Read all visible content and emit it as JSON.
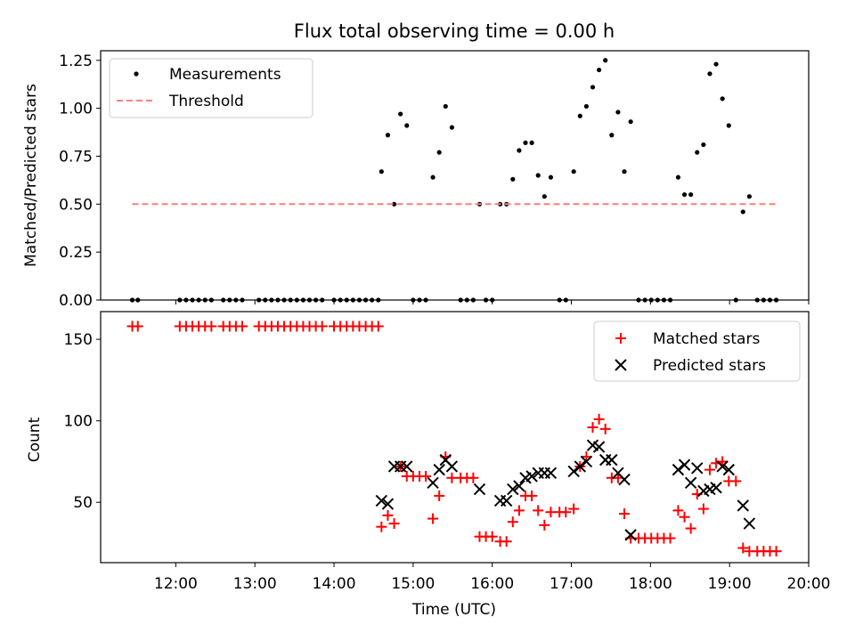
{
  "chart_data": [
    {
      "type": "scatter",
      "title": "Flux total observing time = 0.00 h",
      "xlabel": "",
      "ylabel": "Matched/Predicted stars",
      "xlim": [
        11.05,
        20.0
      ],
      "ylim": [
        0.0,
        1.3
      ],
      "yticks": [
        0.0,
        0.25,
        0.5,
        0.75,
        1.0,
        1.25
      ],
      "ytick_labels": [
        "0.00",
        "0.25",
        "0.50",
        "0.75",
        "1.00",
        "1.25"
      ],
      "xticks": [
        12,
        13,
        14,
        15,
        16,
        17,
        18,
        19,
        20
      ],
      "legend_position": "top-left",
      "series": [
        {
          "name": "Measurements",
          "marker": "dot",
          "color": "#000000",
          "points": [
            [
              11.45,
              0
            ],
            [
              11.52,
              0
            ],
            [
              12.05,
              0
            ],
            [
              12.13,
              0
            ],
            [
              12.21,
              0
            ],
            [
              12.29,
              0
            ],
            [
              12.37,
              0
            ],
            [
              12.45,
              0
            ],
            [
              12.6,
              0
            ],
            [
              12.68,
              0
            ],
            [
              12.76,
              0
            ],
            [
              12.84,
              0
            ],
            [
              13.05,
              0
            ],
            [
              13.13,
              0
            ],
            [
              13.21,
              0
            ],
            [
              13.29,
              0
            ],
            [
              13.37,
              0
            ],
            [
              13.45,
              0
            ],
            [
              13.53,
              0
            ],
            [
              13.61,
              0
            ],
            [
              13.69,
              0
            ],
            [
              13.77,
              0
            ],
            [
              13.85,
              0
            ],
            [
              14.0,
              0
            ],
            [
              14.08,
              0
            ],
            [
              14.16,
              0
            ],
            [
              14.24,
              0
            ],
            [
              14.32,
              0
            ],
            [
              14.4,
              0
            ],
            [
              14.48,
              0
            ],
            [
              14.56,
              0
            ],
            [
              14.6,
              0.67
            ],
            [
              14.68,
              0.86
            ],
            [
              14.76,
              0.5
            ],
            [
              14.84,
              0.97
            ],
            [
              14.92,
              0.91
            ],
            [
              15.0,
              0
            ],
            [
              15.08,
              0
            ],
            [
              15.16,
              0
            ],
            [
              15.25,
              0.64
            ],
            [
              15.33,
              0.77
            ],
            [
              15.41,
              1.01
            ],
            [
              15.49,
              0.9
            ],
            [
              15.6,
              0
            ],
            [
              15.68,
              0
            ],
            [
              15.76,
              0
            ],
            [
              15.84,
              0.5
            ],
            [
              15.92,
              0
            ],
            [
              16.0,
              0
            ],
            [
              16.1,
              0.5
            ],
            [
              16.18,
              0.5
            ],
            [
              16.26,
              0.63
            ],
            [
              16.34,
              0.78
            ],
            [
              16.42,
              0.82
            ],
            [
              16.5,
              0.82
            ],
            [
              16.58,
              0.65
            ],
            [
              16.66,
              0.54
            ],
            [
              16.74,
              0.64
            ],
            [
              16.85,
              0
            ],
            [
              16.93,
              0
            ],
            [
              17.03,
              0.67
            ],
            [
              17.11,
              0.96
            ],
            [
              17.19,
              1.01
            ],
            [
              17.27,
              1.11
            ],
            [
              17.35,
              1.2
            ],
            [
              17.43,
              1.25
            ],
            [
              17.51,
              0.86
            ],
            [
              17.59,
              0.98
            ],
            [
              17.67,
              0.67
            ],
            [
              17.75,
              0.93
            ],
            [
              17.85,
              0
            ],
            [
              17.93,
              0
            ],
            [
              18.01,
              0
            ],
            [
              18.09,
              0
            ],
            [
              18.17,
              0
            ],
            [
              18.25,
              0
            ],
            [
              18.35,
              0.64
            ],
            [
              18.43,
              0.55
            ],
            [
              18.51,
              0.55
            ],
            [
              18.59,
              0.77
            ],
            [
              18.67,
              0.81
            ],
            [
              18.75,
              1.18
            ],
            [
              18.83,
              1.23
            ],
            [
              18.91,
              1.05
            ],
            [
              18.99,
              0.91
            ],
            [
              19.08,
              0
            ],
            [
              19.17,
              0.46
            ],
            [
              19.25,
              0.54
            ],
            [
              19.35,
              0
            ],
            [
              19.43,
              0
            ],
            [
              19.51,
              0
            ],
            [
              19.59,
              0
            ]
          ]
        },
        {
          "name": "Threshold",
          "marker": "dashed-line",
          "color": "#ff7f7f",
          "points": [
            [
              11.45,
              0.5
            ],
            [
              19.6,
              0.5
            ]
          ]
        }
      ]
    },
    {
      "type": "scatter",
      "title": "",
      "xlabel": "Time (UTC)",
      "ylabel": "Count",
      "xlim": [
        11.05,
        20.0
      ],
      "ylim": [
        13,
        167
      ],
      "yticks": [
        50,
        100,
        150
      ],
      "ytick_labels": [
        "50",
        "100",
        "150"
      ],
      "xticks": [
        12,
        13,
        14,
        15,
        16,
        17,
        18,
        19,
        20
      ],
      "xtick_labels": [
        "12:00",
        "13:00",
        "14:00",
        "15:00",
        "16:00",
        "17:00",
        "18:00",
        "19:00",
        "20:00"
      ],
      "legend_position": "top-right",
      "series": [
        {
          "name": "Matched stars",
          "marker": "plus",
          "color": "#ff0000",
          "points": [
            [
              11.45,
              158
            ],
            [
              11.52,
              158
            ],
            [
              12.05,
              158
            ],
            [
              12.13,
              158
            ],
            [
              12.21,
              158
            ],
            [
              12.29,
              158
            ],
            [
              12.37,
              158
            ],
            [
              12.45,
              158
            ],
            [
              12.6,
              158
            ],
            [
              12.68,
              158
            ],
            [
              12.76,
              158
            ],
            [
              12.84,
              158
            ],
            [
              13.05,
              158
            ],
            [
              13.13,
              158
            ],
            [
              13.21,
              158
            ],
            [
              13.29,
              158
            ],
            [
              13.37,
              158
            ],
            [
              13.45,
              158
            ],
            [
              13.53,
              158
            ],
            [
              13.61,
              158
            ],
            [
              13.69,
              158
            ],
            [
              13.77,
              158
            ],
            [
              13.85,
              158
            ],
            [
              14.0,
              158
            ],
            [
              14.08,
              158
            ],
            [
              14.16,
              158
            ],
            [
              14.24,
              158
            ],
            [
              14.32,
              158
            ],
            [
              14.4,
              158
            ],
            [
              14.48,
              158
            ],
            [
              14.56,
              158
            ],
            [
              14.6,
              35
            ],
            [
              14.68,
              42
            ],
            [
              14.76,
              37
            ],
            [
              14.84,
              72
            ],
            [
              14.92,
              66
            ],
            [
              15.0,
              66
            ],
            [
              15.08,
              66
            ],
            [
              15.16,
              66
            ],
            [
              15.25,
              40
            ],
            [
              15.33,
              54
            ],
            [
              15.41,
              78
            ],
            [
              15.49,
              65
            ],
            [
              15.6,
              65
            ],
            [
              15.68,
              65
            ],
            [
              15.76,
              65
            ],
            [
              15.84,
              29
            ],
            [
              15.92,
              29
            ],
            [
              16.0,
              29
            ],
            [
              16.1,
              26
            ],
            [
              16.18,
              26
            ],
            [
              16.26,
              38
            ],
            [
              16.34,
              45
            ],
            [
              16.42,
              54
            ],
            [
              16.5,
              54
            ],
            [
              16.58,
              45
            ],
            [
              16.66,
              36
            ],
            [
              16.74,
              44
            ],
            [
              16.85,
              44
            ],
            [
              16.93,
              44
            ],
            [
              17.03,
              46
            ],
            [
              17.11,
              72
            ],
            [
              17.19,
              78
            ],
            [
              17.27,
              96
            ],
            [
              17.35,
              101
            ],
            [
              17.43,
              95
            ],
            [
              17.51,
              65
            ],
            [
              17.59,
              65
            ],
            [
              17.67,
              43
            ],
            [
              17.75,
              28
            ],
            [
              17.85,
              28
            ],
            [
              17.93,
              28
            ],
            [
              18.01,
              28
            ],
            [
              18.09,
              28
            ],
            [
              18.17,
              28
            ],
            [
              18.25,
              28
            ],
            [
              18.35,
              45
            ],
            [
              18.43,
              41
            ],
            [
              18.51,
              34
            ],
            [
              18.59,
              55
            ],
            [
              18.67,
              46
            ],
            [
              18.75,
              70
            ],
            [
              18.83,
              74
            ],
            [
              18.91,
              75
            ],
            [
              18.99,
              63
            ],
            [
              19.08,
              63
            ],
            [
              19.17,
              22
            ],
            [
              19.25,
              20
            ],
            [
              19.35,
              20
            ],
            [
              19.43,
              20
            ],
            [
              19.51,
              20
            ],
            [
              19.59,
              20
            ]
          ]
        },
        {
          "name": "Predicted stars",
          "marker": "x",
          "color": "#000000",
          "points": [
            [
              14.6,
              51
            ],
            [
              14.68,
              49
            ],
            [
              14.76,
              72
            ],
            [
              14.84,
              72
            ],
            [
              14.92,
              72
            ],
            [
              15.25,
              62
            ],
            [
              15.33,
              70
            ],
            [
              15.41,
              76
            ],
            [
              15.49,
              72
            ],
            [
              15.84,
              58
            ],
            [
              16.1,
              51
            ],
            [
              16.18,
              51
            ],
            [
              16.26,
              58
            ],
            [
              16.34,
              60
            ],
            [
              16.42,
              65
            ],
            [
              16.5,
              66
            ],
            [
              16.58,
              68
            ],
            [
              16.66,
              68
            ],
            [
              16.74,
              68
            ],
            [
              17.03,
              69
            ],
            [
              17.11,
              72
            ],
            [
              17.19,
              75
            ],
            [
              17.27,
              85
            ],
            [
              17.35,
              84
            ],
            [
              17.43,
              76
            ],
            [
              17.51,
              76
            ],
            [
              17.59,
              68
            ],
            [
              17.67,
              64
            ],
            [
              17.75,
              30
            ],
            [
              18.35,
              70
            ],
            [
              18.43,
              73
            ],
            [
              18.51,
              62
            ],
            [
              18.59,
              71
            ],
            [
              18.67,
              57
            ],
            [
              18.75,
              58
            ],
            [
              18.83,
              59
            ],
            [
              18.91,
              72
            ],
            [
              18.99,
              70
            ],
            [
              19.17,
              48
            ],
            [
              19.25,
              37
            ]
          ]
        }
      ]
    }
  ]
}
